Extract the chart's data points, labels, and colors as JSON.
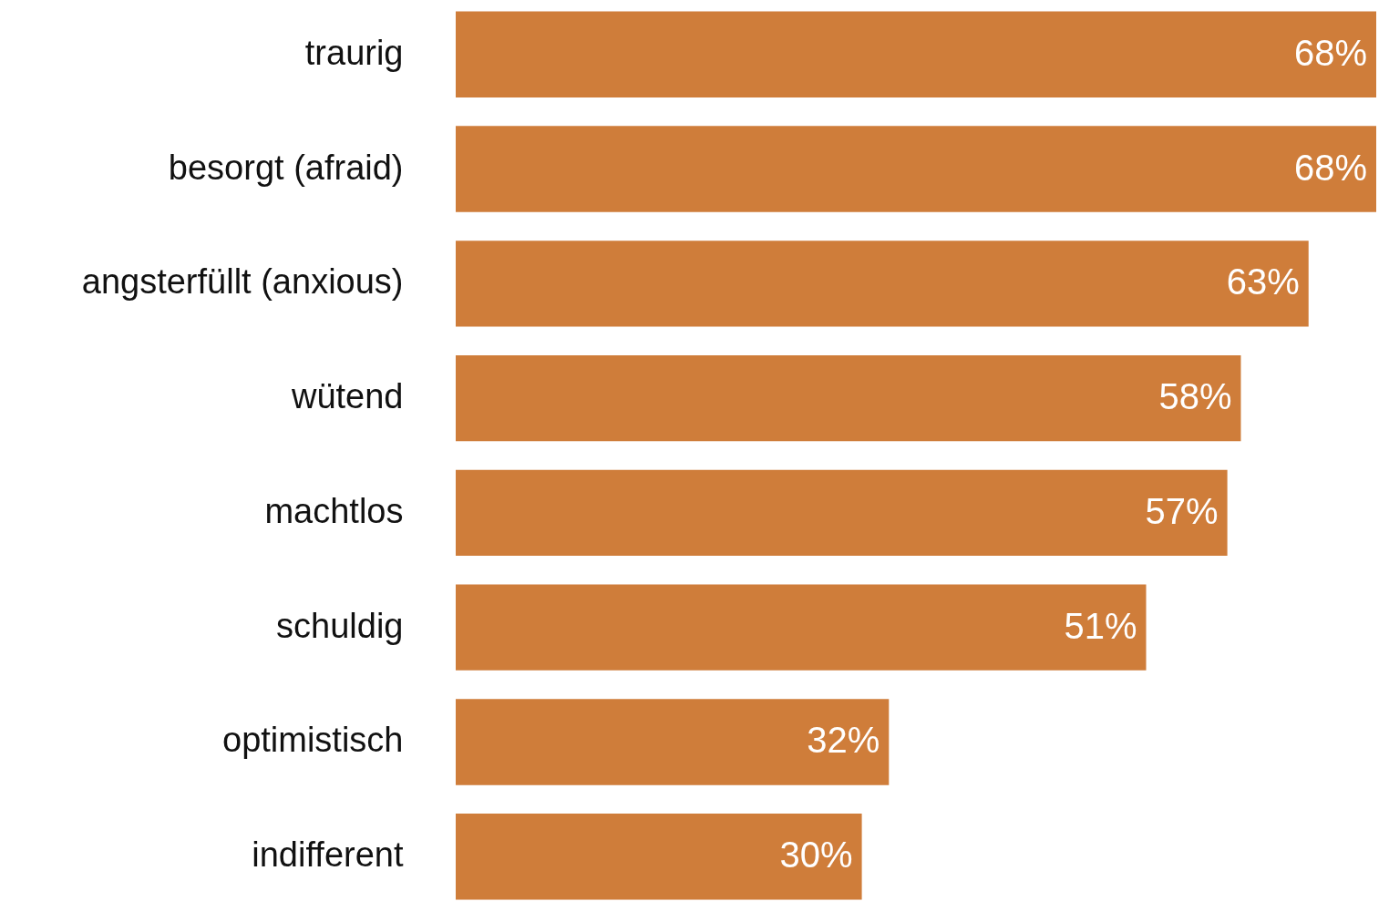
{
  "chart_data": {
    "type": "bar",
    "orientation": "horizontal",
    "categories": [
      "traurig",
      "besorgt (afraid)",
      "angsterfüllt (anxious)",
      "wütend",
      "machtlos",
      "schuldig",
      "optimistisch",
      "indifferent"
    ],
    "values": [
      68,
      68,
      63,
      58,
      57,
      51,
      32,
      30
    ],
    "value_labels": [
      "68%",
      "68%",
      "63%",
      "58%",
      "57%",
      "51%",
      "32%",
      "30%"
    ],
    "color": "#cf7d3a",
    "xlim": [
      0,
      68
    ],
    "tick_labels": "y"
  }
}
